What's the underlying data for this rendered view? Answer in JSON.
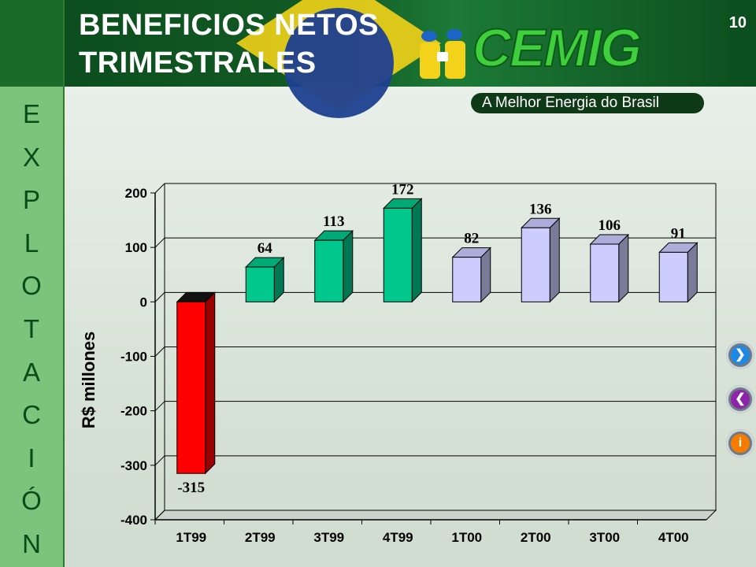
{
  "slide": {
    "title_line1": "BENEFICIOS NETOS",
    "title_line2": "TRIMESTRALES",
    "page_number": "10",
    "logo_text": "CEMIG",
    "tagline": "A Melhor Energia do Brasil",
    "sidebar_letters": [
      "E",
      "X",
      "P",
      "L",
      "O",
      "T",
      "A",
      "C",
      "I",
      "Ó",
      "N"
    ]
  },
  "nav": {
    "next_icon": "chevron-right-icon",
    "prev_icon": "chevron-left-icon",
    "info_icon": "info-icon",
    "next_color": "#1e88e5",
    "prev_color": "#8e24aa",
    "info_color": "#f57c00"
  },
  "chart_data": {
    "type": "bar",
    "categories": [
      "1T99",
      "2T99",
      "3T99",
      "4T99",
      "1T00",
      "2T00",
      "3T00",
      "4T00"
    ],
    "values": [
      -315,
      64,
      113,
      172,
      82,
      136,
      106,
      91
    ],
    "value_labels": [
      "-315",
      "64",
      "113",
      "172",
      "82",
      "136",
      "106",
      "91"
    ],
    "colors": [
      "#ff0000",
      "#00c88c",
      "#00c88c",
      "#00c88c",
      "#ccccff",
      "#ccccff",
      "#ccccff",
      "#ccccff"
    ],
    "ylabel": "R$ millones",
    "ylim": [
      -400,
      200
    ],
    "yticks": [
      200,
      100,
      0,
      -100,
      -200,
      -300,
      -400
    ],
    "ytick_labels": [
      "200",
      "100",
      "0",
      "-100",
      "-200",
      "-300",
      "-400"
    ],
    "grid": true,
    "style": "3d-bar"
  }
}
